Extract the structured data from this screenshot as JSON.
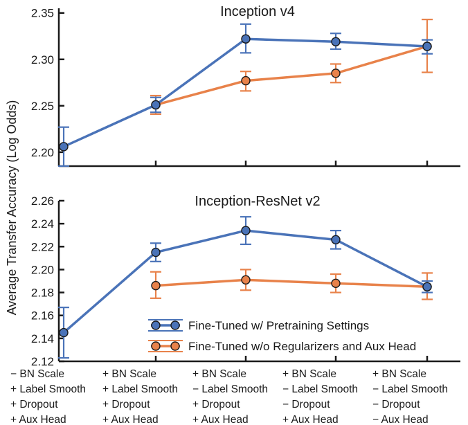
{
  "chart_data": {
    "type": "line",
    "ylabel": "Average Transfer Accuracy (Log Odds)",
    "categories": [
      [
        "− BN Scale",
        "+ Label Smooth",
        "+ Dropout",
        "+ Aux Head"
      ],
      [
        "+ BN Scale",
        "+ Label Smooth",
        "+ Dropout",
        "+ Aux Head"
      ],
      [
        "+ BN Scale",
        "− Label Smooth",
        "+ Dropout",
        "+ Aux Head"
      ],
      [
        "+ BN Scale",
        "− Label Smooth",
        "− Dropout",
        "+ Aux Head"
      ],
      [
        "+ BN Scale",
        "− Label Smooth",
        "− Dropout",
        "− Aux Head"
      ]
    ],
    "legend": {
      "position": "lower-right of bottom panel",
      "entries": [
        {
          "label": "Fine-Tuned w/ Pretraining Settings",
          "color": "#4a73b8"
        },
        {
          "label": "Fine-Tuned w/o Regularizers and Aux Head",
          "color": "#e8824a"
        }
      ]
    },
    "colors": {
      "blue": "#4a73b8",
      "orange": "#e8824a",
      "marker_edge": "#1a1a1a"
    },
    "panels": [
      {
        "title": "Inception v4",
        "ylim": [
          2.185,
          2.355
        ],
        "yticks": [
          2.2,
          2.25,
          2.3,
          2.35
        ],
        "ytick_labels": [
          "2.20",
          "2.25",
          "2.30",
          "2.35"
        ],
        "series": [
          {
            "name": "Fine-Tuned w/ Pretraining Settings",
            "color": "#4a73b8",
            "x": [
              0,
              1,
              2,
              3,
              4
            ],
            "values": [
              2.206,
              2.251,
              2.322,
              2.319,
              2.314
            ],
            "err_low": [
              2.185,
              2.243,
              2.307,
              2.311,
              2.306
            ],
            "err_high": [
              2.227,
              2.259,
              2.338,
              2.328,
              2.321
            ]
          },
          {
            "name": "Fine-Tuned w/o Regularizers and Aux Head",
            "color": "#e8824a",
            "x": [
              1,
              2,
              3,
              4
            ],
            "values": [
              2.251,
              2.277,
              2.285,
              2.314
            ],
            "err_low": [
              2.241,
              2.266,
              2.275,
              2.286
            ],
            "err_high": [
              2.261,
              2.287,
              2.295,
              2.343
            ]
          }
        ]
      },
      {
        "title": "Inception-ResNet v2",
        "ylim": [
          2.12,
          2.26
        ],
        "yticks": [
          2.12,
          2.14,
          2.16,
          2.18,
          2.2,
          2.22,
          2.24,
          2.26
        ],
        "ytick_labels": [
          "2.12",
          "2.14",
          "2.16",
          "2.18",
          "2.20",
          "2.22",
          "2.24",
          "2.26"
        ],
        "series": [
          {
            "name": "Fine-Tuned w/ Pretraining Settings",
            "color": "#4a73b8",
            "x": [
              0,
              1,
              2,
              3,
              4
            ],
            "values": [
              2.145,
              2.215,
              2.234,
              2.226,
              2.185
            ],
            "err_low": [
              2.123,
              2.207,
              2.222,
              2.218,
              2.18
            ],
            "err_high": [
              2.167,
              2.223,
              2.246,
              2.234,
              2.19
            ]
          },
          {
            "name": "Fine-Tuned w/o Regularizers and Aux Head",
            "color": "#e8824a",
            "x": [
              1,
              2,
              3,
              4
            ],
            "values": [
              2.186,
              2.191,
              2.188,
              2.185
            ],
            "err_low": [
              2.175,
              2.182,
              2.18,
              2.174
            ],
            "err_high": [
              2.198,
              2.2,
              2.196,
              2.197
            ]
          }
        ]
      }
    ]
  }
}
